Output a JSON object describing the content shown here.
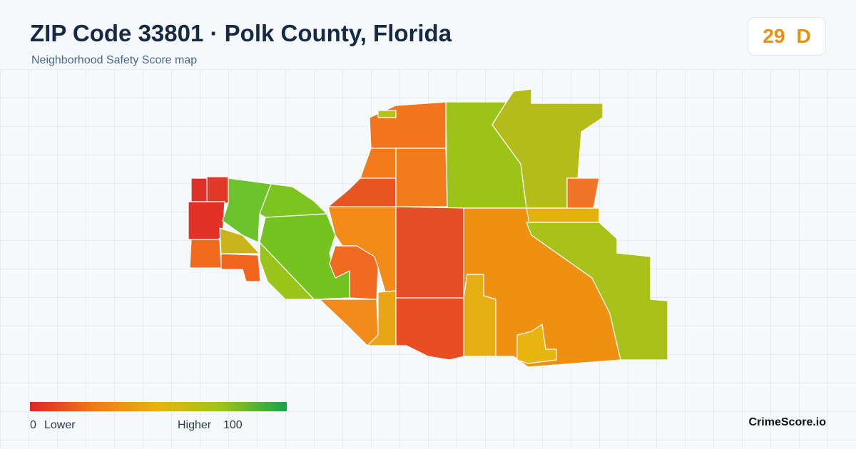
{
  "header": {
    "title": "ZIP Code 33801 · Polk County, Florida",
    "subtitle": "Neighborhood Safety Score map"
  },
  "score": {
    "value": 29,
    "grade": "D"
  },
  "legend": {
    "min": 0,
    "min_label": "Lower",
    "max_label": "Higher",
    "max": 100
  },
  "brand": "CrimeScore.io"
}
